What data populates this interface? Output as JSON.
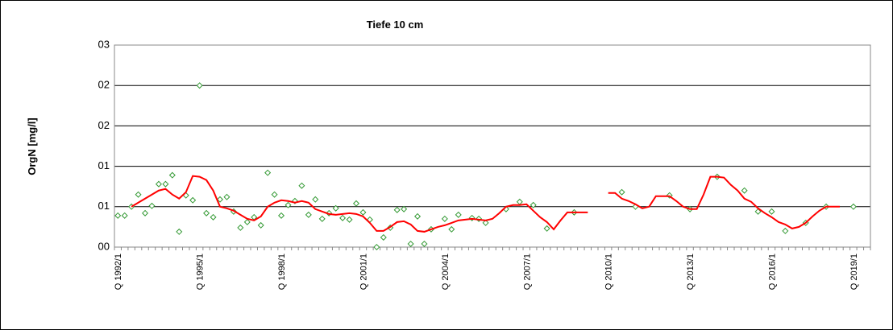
{
  "chart_data": {
    "type": "line",
    "title": "Tiefe  10 cm",
    "y_label": "OrgN [mg/l]",
    "categories": [
      "Q 1992/1",
      null,
      null,
      null,
      null,
      null,
      null,
      null,
      null,
      null,
      null,
      null,
      "Q 1995/1",
      null,
      null,
      null,
      null,
      null,
      null,
      null,
      null,
      null,
      null,
      null,
      "Q 1998/1",
      null,
      null,
      null,
      null,
      null,
      null,
      null,
      null,
      null,
      null,
      null,
      "Q 2001/1",
      null,
      null,
      null,
      null,
      null,
      null,
      null,
      null,
      null,
      null,
      null,
      "Q 2004/1",
      null,
      null,
      null,
      null,
      null,
      null,
      null,
      null,
      null,
      null,
      null,
      "Q 2007/1",
      null,
      null,
      null,
      null,
      null,
      null,
      null,
      null,
      null,
      null,
      null,
      "Q 2010/1",
      null,
      null,
      null,
      null,
      null,
      null,
      null,
      null,
      null,
      null,
      null,
      "Q 2013/1",
      null,
      null,
      null,
      null,
      null,
      null,
      null,
      null,
      null,
      null,
      null,
      "Q 2016/1",
      null,
      null,
      null,
      null,
      null,
      null,
      null,
      null,
      null,
      null,
      null,
      "Q 2019/1",
      null,
      null
    ],
    "series": [
      {
        "type": "scatter",
        "color": "#339933",
        "values": [
          0.39,
          0.39,
          0.5,
          0.65,
          0.42,
          0.51,
          0.78,
          0.78,
          0.89,
          0.19,
          0.64,
          0.58,
          2.0,
          0.42,
          0.37,
          0.59,
          0.62,
          0.44,
          0.24,
          0.31,
          0.37,
          0.27,
          0.92,
          0.65,
          0.39,
          0.52,
          0.57,
          0.76,
          0.4,
          0.59,
          0.35,
          0.42,
          0.48,
          0.36,
          0.34,
          0.54,
          0.43,
          0.34,
          0.0,
          0.12,
          0.24,
          0.46,
          0.47,
          0.04,
          0.38,
          0.04,
          0.22,
          null,
          0.35,
          0.22,
          0.4,
          null,
          0.36,
          0.35,
          0.3,
          null,
          null,
          0.47,
          null,
          0.56,
          null,
          0.52,
          null,
          0.23,
          null,
          null,
          null,
          0.43,
          null,
          null,
          null,
          null,
          null,
          null,
          0.68,
          null,
          0.5,
          null,
          null,
          null,
          null,
          0.64,
          null,
          null,
          0.47,
          null,
          null,
          null,
          0.87,
          null,
          null,
          null,
          0.7,
          null,
          0.44,
          null,
          0.44,
          null,
          0.2,
          null,
          null,
          0.3,
          null,
          null,
          0.5,
          null,
          null,
          null,
          0.5,
          null,
          null
        ]
      },
      {
        "type": "line",
        "color": "#ff0000",
        "values": [
          null,
          null,
          0.5,
          0.55,
          0.6,
          0.65,
          0.7,
          0.72,
          0.65,
          0.6,
          0.68,
          0.88,
          0.87,
          0.83,
          0.7,
          0.5,
          0.48,
          0.45,
          0.4,
          0.35,
          0.33,
          0.38,
          0.5,
          0.55,
          0.58,
          0.57,
          0.55,
          0.57,
          0.55,
          0.47,
          0.44,
          0.41,
          0.4,
          0.41,
          0.42,
          0.41,
          0.38,
          0.3,
          0.2,
          0.2,
          0.25,
          0.31,
          0.32,
          0.28,
          0.2,
          0.19,
          0.22,
          0.25,
          0.27,
          0.3,
          0.33,
          0.34,
          0.35,
          0.34,
          0.33,
          0.35,
          0.42,
          0.5,
          0.52,
          0.52,
          0.53,
          0.45,
          0.37,
          0.31,
          0.22,
          0.33,
          0.43,
          0.43,
          0.43,
          0.43,
          null,
          null,
          0.67,
          0.67,
          0.6,
          0.57,
          0.53,
          0.48,
          0.5,
          0.63,
          0.63,
          0.63,
          0.57,
          0.5,
          0.47,
          0.47,
          0.65,
          0.87,
          0.87,
          0.86,
          0.77,
          0.7,
          0.6,
          0.56,
          0.48,
          0.42,
          0.37,
          0.31,
          0.28,
          0.23,
          0.25,
          0.3,
          0.38,
          0.45,
          0.5,
          0.5,
          0.5,
          null,
          null,
          null,
          null
        ]
      }
    ],
    "ylim": [
      0,
      2.5
    ],
    "yticks": [
      {
        "value": 0,
        "label": "00"
      },
      {
        "value": 0.5,
        "label": "01"
      },
      {
        "value": 1,
        "label": "01"
      },
      {
        "value": 1.5,
        "label": "02"
      },
      {
        "value": 2,
        "label": "02"
      },
      {
        "value": 2.5,
        "label": "03"
      }
    ],
    "grid": true
  }
}
